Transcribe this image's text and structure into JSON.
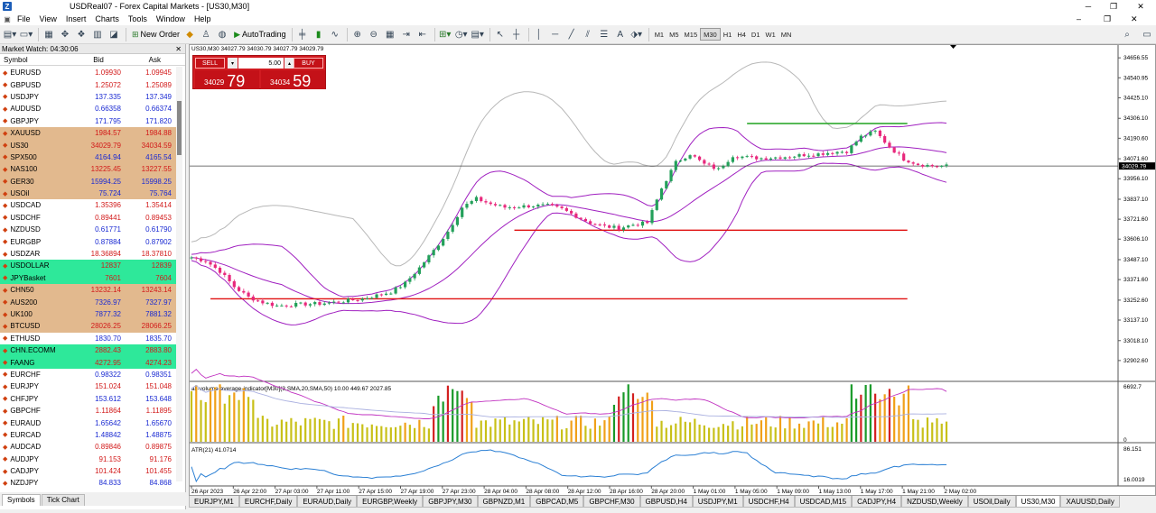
{
  "window": {
    "title": "USDReal07 - Forex Capital Markets - [US30,M30]"
  },
  "menu": [
    "File",
    "View",
    "Insert",
    "Charts",
    "Tools",
    "Window",
    "Help"
  ],
  "toolbar": {
    "new_order": "New Order",
    "auto_trading": "AutoTrading",
    "timeframes": [
      "M1",
      "M5",
      "M15",
      "M30",
      "H1",
      "H4",
      "D1",
      "W1",
      "MN"
    ],
    "active_timeframe": "M30"
  },
  "market_watch": {
    "title": "Market Watch: 04:30:06",
    "headers": [
      "Symbol",
      "Bid",
      "Ask"
    ],
    "rows": [
      {
        "s": "EURUSD",
        "b": "1.09930",
        "a": "1.09945",
        "bg": "#ffffff",
        "bc": "#d21a1a",
        "ac": "#d21a1a"
      },
      {
        "s": "GBPUSD",
        "b": "1.25072",
        "a": "1.25089",
        "bg": "#ffffff",
        "bc": "#d21a1a",
        "ac": "#d21a1a"
      },
      {
        "s": "USDJPY",
        "b": "137.335",
        "a": "137.349",
        "bg": "#ffffff",
        "bc": "#1a2ad2",
        "ac": "#1a2ad2"
      },
      {
        "s": "AUDUSD",
        "b": "0.66358",
        "a": "0.66374",
        "bg": "#ffffff",
        "bc": "#1a2ad2",
        "ac": "#1a2ad2"
      },
      {
        "s": "GBPJPY",
        "b": "171.795",
        "a": "171.820",
        "bg": "#ffffff",
        "bc": "#1a2ad2",
        "ac": "#1a2ad2"
      },
      {
        "s": "XAUUSD",
        "b": "1984.57",
        "a": "1984.88",
        "bg": "#e2b98e",
        "bc": "#d21a1a",
        "ac": "#d21a1a"
      },
      {
        "s": "US30",
        "b": "34029.79",
        "a": "34034.59",
        "bg": "#e2b98e",
        "bc": "#d21a1a",
        "ac": "#d21a1a"
      },
      {
        "s": "SPX500",
        "b": "4164.94",
        "a": "4165.54",
        "bg": "#e2b98e",
        "bc": "#1a2ad2",
        "ac": "#1a2ad2"
      },
      {
        "s": "NAS100",
        "b": "13225.45",
        "a": "13227.55",
        "bg": "#e2b98e",
        "bc": "#d21a1a",
        "ac": "#d21a1a"
      },
      {
        "s": "GER30",
        "b": "15994.25",
        "a": "15998.25",
        "bg": "#e2b98e",
        "bc": "#1a2ad2",
        "ac": "#1a2ad2"
      },
      {
        "s": "USOil",
        "b": "75.724",
        "a": "75.764",
        "bg": "#e2b98e",
        "bc": "#1a2ad2",
        "ac": "#1a2ad2"
      },
      {
        "s": "USDCAD",
        "b": "1.35396",
        "a": "1.35414",
        "bg": "#ffffff",
        "bc": "#d21a1a",
        "ac": "#d21a1a"
      },
      {
        "s": "USDCHF",
        "b": "0.89441",
        "a": "0.89453",
        "bg": "#ffffff",
        "bc": "#d21a1a",
        "ac": "#d21a1a"
      },
      {
        "s": "NZDUSD",
        "b": "0.61771",
        "a": "0.61790",
        "bg": "#ffffff",
        "bc": "#1a2ad2",
        "ac": "#1a2ad2"
      },
      {
        "s": "EURGBP",
        "b": "0.87884",
        "a": "0.87902",
        "bg": "#ffffff",
        "bc": "#1a2ad2",
        "ac": "#1a2ad2"
      },
      {
        "s": "USDZAR",
        "b": "18.36894",
        "a": "18.37810",
        "bg": "#ffffff",
        "bc": "#d21a1a",
        "ac": "#d21a1a"
      },
      {
        "s": "USDOLLAR",
        "b": "12837",
        "a": "12839",
        "bg": "#2ee89a",
        "bc": "#d21a1a",
        "ac": "#d21a1a"
      },
      {
        "s": "JPYBasket",
        "b": "7601",
        "a": "7604",
        "bg": "#2ee89a",
        "bc": "#d21a1a",
        "ac": "#d21a1a"
      },
      {
        "s": "CHN50",
        "b": "13232.14",
        "a": "13243.14",
        "bg": "#e2b98e",
        "bc": "#d21a1a",
        "ac": "#d21a1a"
      },
      {
        "s": "AUS200",
        "b": "7326.97",
        "a": "7327.97",
        "bg": "#e2b98e",
        "bc": "#1a2ad2",
        "ac": "#1a2ad2"
      },
      {
        "s": "UK100",
        "b": "7877.32",
        "a": "7881.32",
        "bg": "#e2b98e",
        "bc": "#1a2ad2",
        "ac": "#1a2ad2"
      },
      {
        "s": "BTCUSD",
        "b": "28026.25",
        "a": "28066.25",
        "bg": "#e2b98e",
        "bc": "#d21a1a",
        "ac": "#d21a1a"
      },
      {
        "s": "ETHUSD",
        "b": "1830.70",
        "a": "1835.70",
        "bg": "#ffffff",
        "bc": "#1a2ad2",
        "ac": "#1a2ad2"
      },
      {
        "s": "CHN.ECOMM",
        "b": "2882.43",
        "a": "2883.80",
        "bg": "#2ee89a",
        "bc": "#d21a1a",
        "ac": "#d21a1a"
      },
      {
        "s": "FAANG",
        "b": "4272.95",
        "a": "4274.23",
        "bg": "#2ee89a",
        "bc": "#d21a1a",
        "ac": "#d21a1a"
      },
      {
        "s": "EURCHF",
        "b": "0.98322",
        "a": "0.98351",
        "bg": "#ffffff",
        "bc": "#1a2ad2",
        "ac": "#1a2ad2"
      },
      {
        "s": "EURJPY",
        "b": "151.024",
        "a": "151.048",
        "bg": "#ffffff",
        "bc": "#d21a1a",
        "ac": "#d21a1a"
      },
      {
        "s": "CHFJPY",
        "b": "153.612",
        "a": "153.648",
        "bg": "#ffffff",
        "bc": "#1a2ad2",
        "ac": "#1a2ad2"
      },
      {
        "s": "GBPCHF",
        "b": "1.11864",
        "a": "1.11895",
        "bg": "#ffffff",
        "bc": "#d21a1a",
        "ac": "#d21a1a"
      },
      {
        "s": "EURAUD",
        "b": "1.65642",
        "a": "1.65670",
        "bg": "#ffffff",
        "bc": "#1a2ad2",
        "ac": "#1a2ad2"
      },
      {
        "s": "EURCAD",
        "b": "1.48842",
        "a": "1.48875",
        "bg": "#ffffff",
        "bc": "#1a2ad2",
        "ac": "#1a2ad2"
      },
      {
        "s": "AUDCAD",
        "b": "0.89846",
        "a": "0.89875",
        "bg": "#ffffff",
        "bc": "#d21a1a",
        "ac": "#d21a1a"
      },
      {
        "s": "AUDJPY",
        "b": "91.153",
        "a": "91.176",
        "bg": "#ffffff",
        "bc": "#d21a1a",
        "ac": "#d21a1a"
      },
      {
        "s": "CADJPY",
        "b": "101.424",
        "a": "101.455",
        "bg": "#ffffff",
        "bc": "#d21a1a",
        "ac": "#d21a1a"
      },
      {
        "s": "NZDJPY",
        "b": "84.833",
        "a": "84.868",
        "bg": "#ffffff",
        "bc": "#1a2ad2",
        "ac": "#1a2ad2"
      }
    ],
    "tabs": [
      "Symbols",
      "Tick Chart"
    ]
  },
  "chart": {
    "ohlc": "US30,M30  34027.79 34030.79 34027.79 34029.79",
    "trade_panel": {
      "sell_label": "SELL",
      "buy_label": "BUY",
      "lot": "5.00",
      "sell_small": "34029",
      "sell_big": "79",
      "buy_small": "34034",
      "buy_big": "59"
    },
    "current_price": "34029.79",
    "price_ticks": [
      "34656.55",
      "34540.95",
      "34425.10",
      "34306.10",
      "34190.60",
      "34071.60",
      "33956.10",
      "33837.10",
      "33721.60",
      "33606.10",
      "33487.10",
      "33371.60",
      "33252.60",
      "33137.10",
      "33018.10",
      "32902.60",
      "32787.10"
    ],
    "volume_indicator": "all-volume-average-indicator[M30](3,SMA,20,SMA,50) 10.00 449.67 2027.85",
    "volume_ticks": [
      "6692.7",
      "0"
    ],
    "atr_label": "ATR(21) 41.0714",
    "atr_ticks": [
      "86.151",
      "16.0019"
    ],
    "time_ticks": [
      "26 Apr 2023",
      "26 Apr 22:00",
      "27 Apr 03:00",
      "27 Apr 11:00",
      "27 Apr 15:00",
      "27 Apr 19:00",
      "27 Apr 23:00",
      "28 Apr 04:00",
      "28 Apr 08:00",
      "28 Apr 12:00",
      "28 Apr 16:00",
      "28 Apr 20:00",
      "1 May 01:00",
      "1 May 05:00",
      "1 May 09:00",
      "1 May 13:00",
      "1 May 17:00",
      "1 May 21:00",
      "2 May 02:00"
    ]
  },
  "chart_tabs": [
    "EURJPY,M1",
    "EURCHF,Daily",
    "EURAUD,Daily",
    "EURGBP,Weekly",
    "GBPJPY,M30",
    "GBPNZD,M1",
    "GBPCAD,M5",
    "GBPCHF,M30",
    "GBPUSD,H4",
    "USDJPY,M1",
    "USDCHF,H4",
    "USDCAD,M15",
    "CADJPY,H4",
    "NZDUSD,Weekly",
    "USOil,Daily",
    "US30,M30",
    "XAUUSD,Daily"
  ],
  "active_chart_tab": "US30,M30",
  "chart_data": {
    "type": "candlestick",
    "title": "US30,M30",
    "y_range": [
      32787.1,
      34720
    ],
    "last_price": 34029.79,
    "close_path": [
      [
        0,
        33500
      ],
      [
        3,
        33480
      ],
      [
        6,
        33420
      ],
      [
        9,
        33330
      ],
      [
        12,
        33270
      ],
      [
        15,
        33240
      ],
      [
        18,
        33220
      ],
      [
        21,
        33225
      ],
      [
        24,
        33230
      ],
      [
        27,
        33232
      ],
      [
        30,
        33240
      ],
      [
        33,
        33250
      ],
      [
        36,
        33260
      ],
      [
        39,
        33280
      ],
      [
        42,
        33300
      ],
      [
        45,
        33350
      ],
      [
        48,
        33440
      ],
      [
        51,
        33540
      ],
      [
        54,
        33650
      ],
      [
        57,
        33790
      ],
      [
        60,
        33840
      ],
      [
        63,
        33810
      ],
      [
        66,
        33790
      ],
      [
        69,
        33795
      ],
      [
        72,
        33800
      ],
      [
        75,
        33800
      ],
      [
        78,
        33780
      ],
      [
        81,
        33740
      ],
      [
        84,
        33700
      ],
      [
        87,
        33680
      ],
      [
        90,
        33670
      ],
      [
        93,
        33690
      ],
      [
        96,
        33700
      ],
      [
        99,
        33900
      ],
      [
        102,
        34050
      ],
      [
        105,
        34100
      ],
      [
        108,
        34040
      ],
      [
        111,
        34010
      ],
      [
        114,
        34090
      ],
      [
        117,
        34080
      ],
      [
        120,
        34075
      ],
      [
        123,
        34080
      ],
      [
        126,
        34085
      ],
      [
        129,
        34095
      ],
      [
        132,
        34100
      ],
      [
        135,
        34110
      ],
      [
        138,
        34115
      ],
      [
        141,
        34200
      ],
      [
        144,
        34230
      ],
      [
        147,
        34140
      ],
      [
        150,
        34070
      ],
      [
        153,
        34040
      ],
      [
        156,
        34030
      ],
      [
        159,
        34029.79
      ]
    ],
    "horizontal_lines": [
      {
        "price": 34276,
        "color": "#1fa31f"
      },
      {
        "price": 33658,
        "color": "#e01010"
      },
      {
        "price": 33260,
        "color": "#e01010"
      }
    ]
  }
}
